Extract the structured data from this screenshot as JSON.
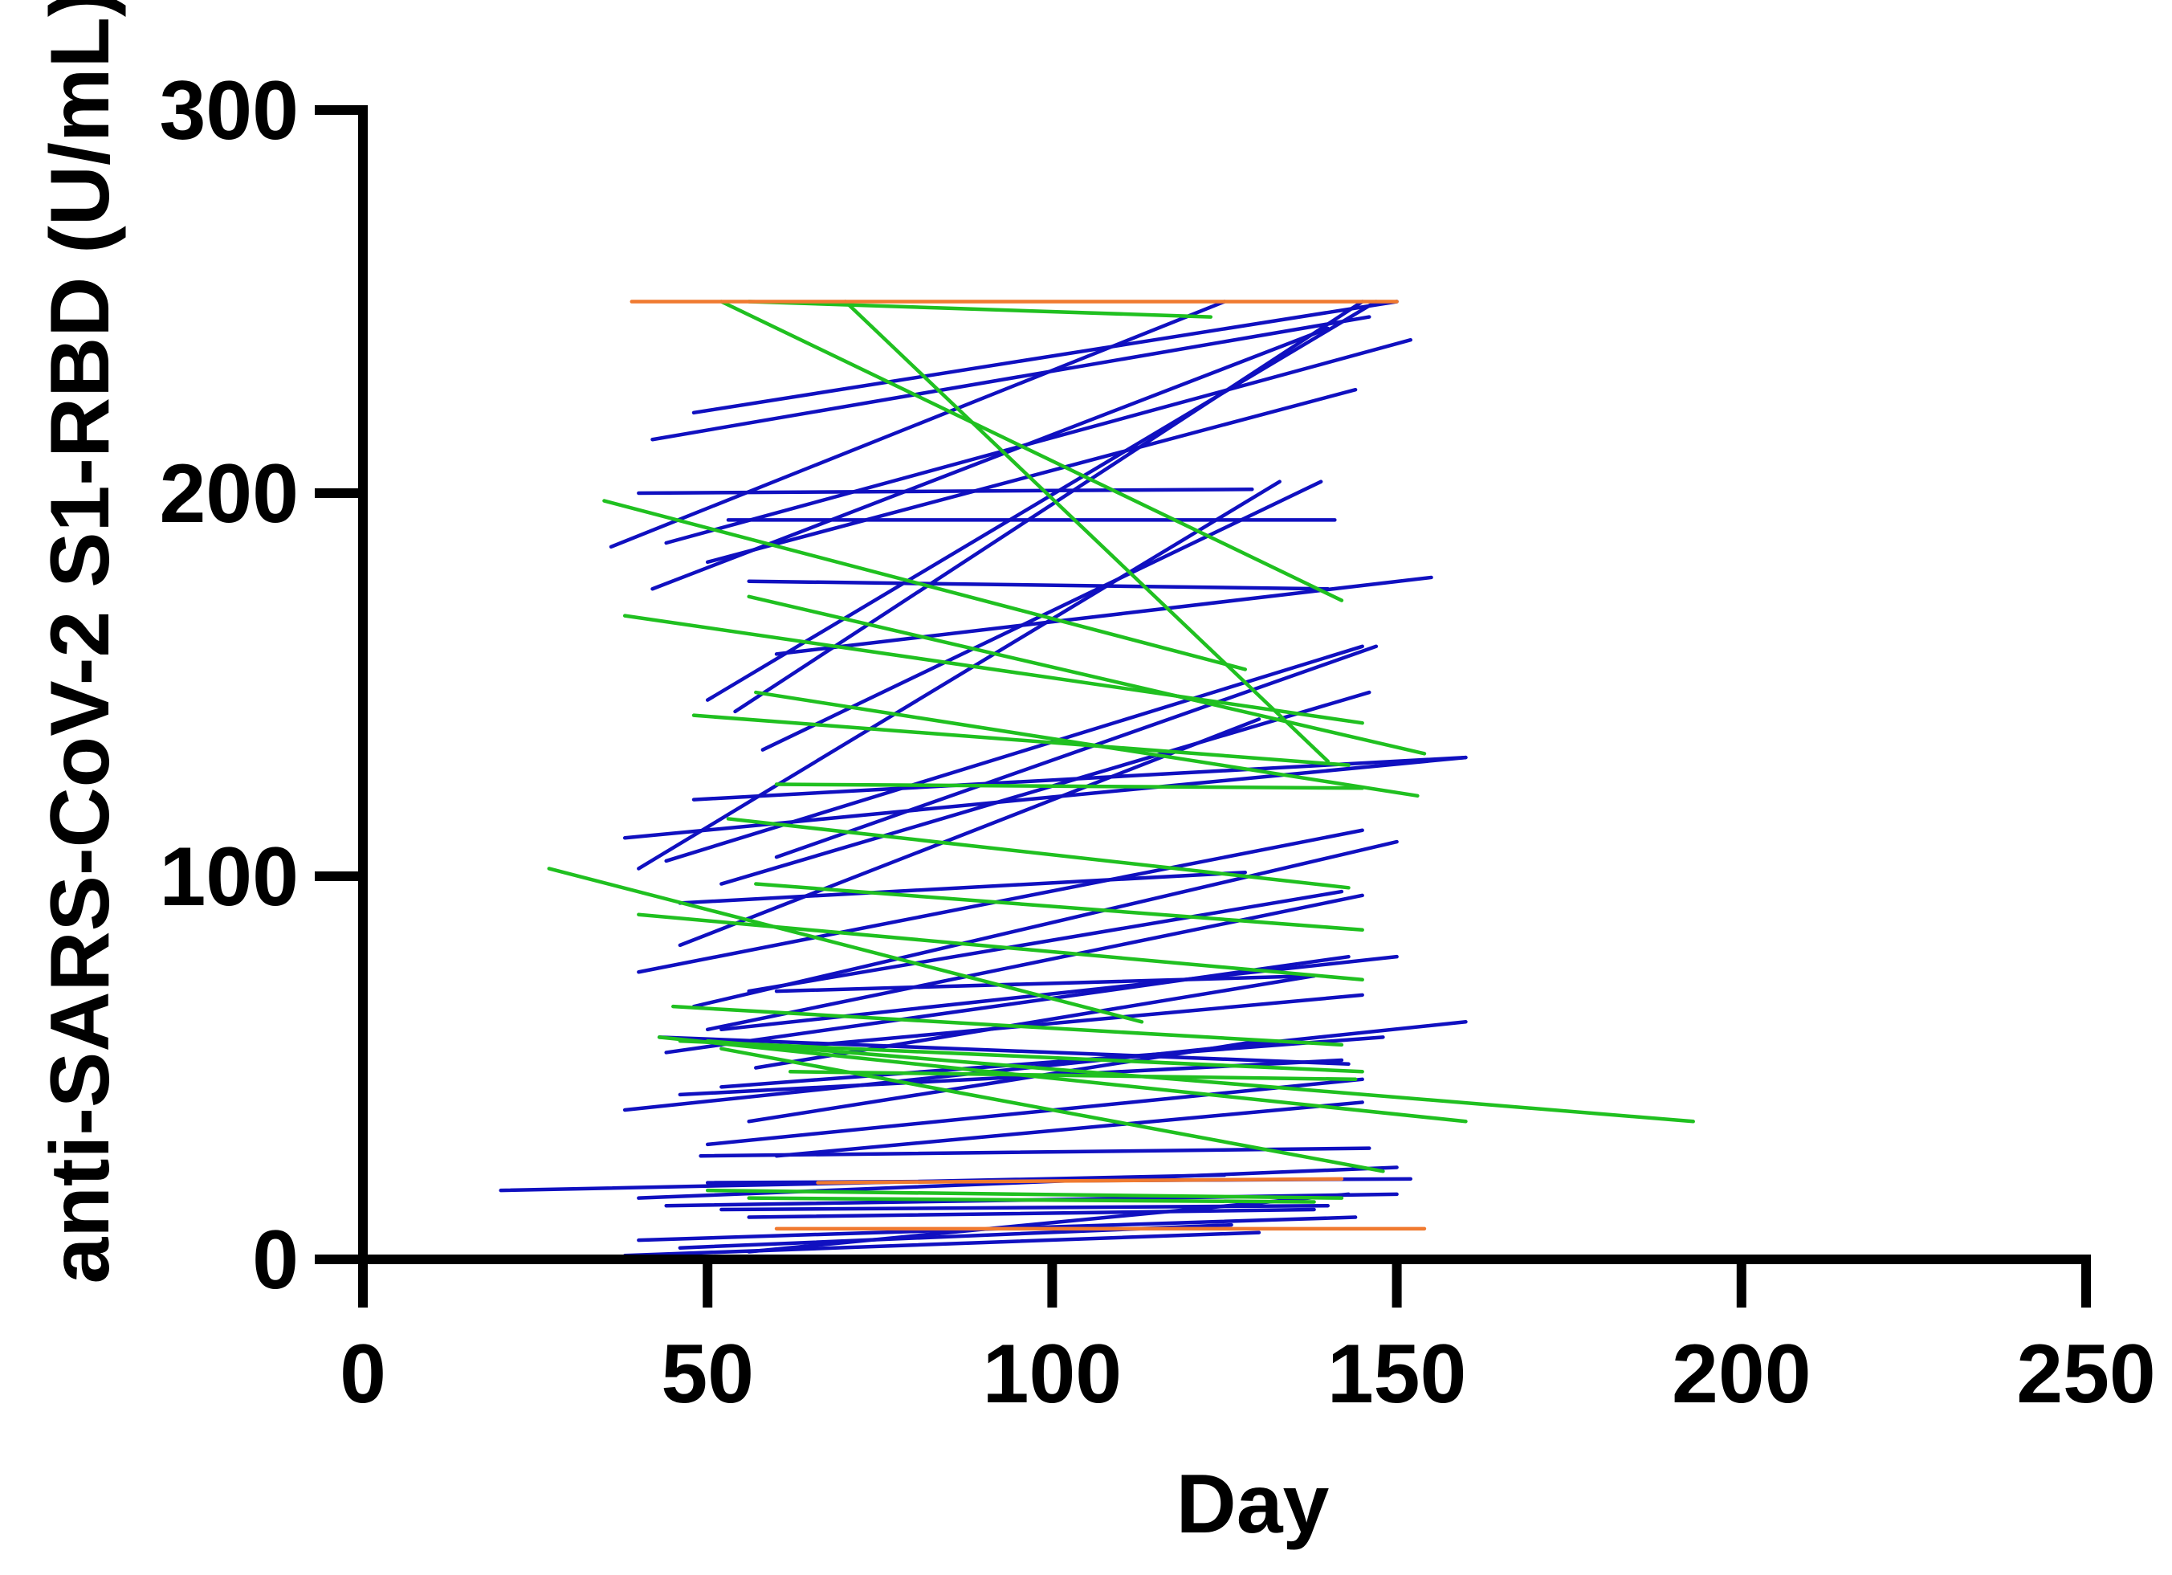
{
  "chart_data": {
    "type": "line",
    "title": "",
    "xlabel": "Day",
    "ylabel": "anti-SARS-CoV-2 S1-RBD (U/mL)",
    "xlim": [
      0,
      250
    ],
    "ylim": [
      0,
      300
    ],
    "x_ticks": [
      {
        "value": 0,
        "label": "0"
      },
      {
        "value": 50,
        "label": "50"
      },
      {
        "value": 100,
        "label": "100"
      },
      {
        "value": 150,
        "label": "150"
      },
      {
        "value": 200,
        "label": "200"
      },
      {
        "value": 250,
        "label": "250"
      }
    ],
    "y_ticks": [
      {
        "value": 0,
        "label": "0"
      },
      {
        "value": 100,
        "label": "100"
      },
      {
        "value": 200,
        "label": "200"
      },
      {
        "value": 300,
        "label": "300"
      }
    ],
    "grid": false,
    "legend": "none",
    "colors": {
      "blue": "#1010c0",
      "green": "#20c020",
      "orange": "#f07a30"
    },
    "series": [
      {
        "color": "blue",
        "segments": [
          [
            [
              36,
              186
            ],
            [
              125,
              250
            ]
          ],
          [
            [
              48,
              221
            ],
            [
              150,
              250
            ]
          ],
          [
            [
              42,
              214
            ],
            [
              146,
              246
            ]
          ],
          [
            [
              40,
              200
            ],
            [
              129,
              201
            ]
          ],
          [
            [
              42,
              175
            ],
            [
              140,
              243
            ]
          ],
          [
            [
              44,
              187
            ],
            [
              152,
              240
            ]
          ],
          [
            [
              50,
              182
            ],
            [
              144,
              227
            ]
          ],
          [
            [
              53,
              193
            ],
            [
              141,
              193
            ]
          ],
          [
            [
              56,
              177
            ],
            [
              140,
              175
            ]
          ],
          [
            [
              50,
              146
            ],
            [
              147,
              250
            ]
          ],
          [
            [
              60,
              158
            ],
            [
              155,
              178
            ]
          ],
          [
            [
              54,
              143
            ],
            [
              145,
              250
            ]
          ],
          [
            [
              58,
              133
            ],
            [
              139,
              203
            ]
          ],
          [
            [
              40,
              102
            ],
            [
              133,
              203
            ]
          ],
          [
            [
              48,
              120
            ],
            [
              160,
              131
            ]
          ],
          [
            [
              44,
              104
            ],
            [
              145,
              160
            ]
          ],
          [
            [
              52,
              98
            ],
            [
              146,
              148
            ]
          ],
          [
            [
              38,
              110
            ],
            [
              160,
              131
            ]
          ],
          [
            [
              60,
              105
            ],
            [
              147,
              160
            ]
          ],
          [
            [
              46,
              82
            ],
            [
              130,
              141
            ]
          ],
          [
            [
              40,
              75
            ],
            [
              145,
              112
            ]
          ],
          [
            [
              48,
              66
            ],
            [
              150,
              109
            ]
          ],
          [
            [
              56,
              70
            ],
            [
              142,
              96
            ]
          ],
          [
            [
              50,
              60
            ],
            [
              145,
              95
            ]
          ],
          [
            [
              44,
              54
            ],
            [
              143,
              79
            ]
          ],
          [
            [
              60,
              55
            ],
            [
              145,
              69
            ]
          ],
          [
            [
              52,
              45
            ],
            [
              148,
              58
            ]
          ],
          [
            [
              46,
              43
            ],
            [
              142,
              52
            ]
          ],
          [
            [
              38,
              39
            ],
            [
              160,
              62
            ]
          ],
          [
            [
              56,
              36
            ],
            [
              130,
              57
            ]
          ],
          [
            [
              50,
              30
            ],
            [
              145,
              47
            ]
          ],
          [
            [
              60,
              27
            ],
            [
              145,
              41
            ]
          ],
          [
            [
              40,
              16
            ],
            [
              150,
              24
            ]
          ],
          [
            [
              50,
              20
            ],
            [
              152,
              21
            ]
          ],
          [
            [
              20,
              18
            ],
            [
              125,
              22
            ]
          ],
          [
            [
              44,
              14
            ],
            [
              150,
              17
            ]
          ],
          [
            [
              52,
              13
            ],
            [
              140,
              14
            ]
          ],
          [
            [
              56,
              11
            ],
            [
              138,
              13
            ]
          ],
          [
            [
              40,
              5
            ],
            [
              144,
              11
            ]
          ],
          [
            [
              46,
              3
            ],
            [
              126,
              9
            ]
          ],
          [
            [
              38,
              1
            ],
            [
              130,
              7
            ]
          ],
          [
            [
              56,
              2
            ],
            [
              143,
              17
            ]
          ],
          [
            [
              52,
              60
            ],
            [
              150,
              79
            ]
          ],
          [
            [
              57,
              50
            ],
            [
              138,
              74
            ]
          ],
          [
            [
              46,
              93
            ],
            [
              128,
              101
            ]
          ],
          [
            [
              43,
              58
            ],
            [
              143,
              51
            ]
          ],
          [
            [
              60,
              70
            ],
            [
              138,
              74
            ]
          ],
          [
            [
              49,
              27
            ],
            [
              146,
              29
            ]
          ]
        ]
      },
      {
        "color": "green",
        "segments": [
          [
            [
              56,
              250
            ],
            [
              123,
              246
            ]
          ],
          [
            [
              70,
              250
            ],
            [
              140,
              130
            ]
          ],
          [
            [
              52,
              250
            ],
            [
              142,
              172
            ]
          ],
          [
            [
              35,
              198
            ],
            [
              128,
              154
            ]
          ],
          [
            [
              38,
              168
            ],
            [
              145,
              140
            ]
          ],
          [
            [
              56,
              173
            ],
            [
              154,
              132
            ]
          ],
          [
            [
              57,
              148
            ],
            [
              153,
              121
            ]
          ],
          [
            [
              48,
              142
            ],
            [
              143,
              129
            ]
          ],
          [
            [
              60,
              124
            ],
            [
              145,
              123
            ]
          ],
          [
            [
              53,
              115
            ],
            [
              143,
              97
            ]
          ],
          [
            [
              27,
              102
            ],
            [
              113,
              62
            ]
          ],
          [
            [
              57,
              98
            ],
            [
              145,
              86
            ]
          ],
          [
            [
              40,
              90
            ],
            [
              145,
              73
            ]
          ],
          [
            [
              45,
              66
            ],
            [
              142,
              56
            ]
          ],
          [
            [
              43,
              58
            ],
            [
              160,
              36
            ]
          ],
          [
            [
              50,
              57
            ],
            [
              193,
              36
            ]
          ],
          [
            [
              46,
              57
            ],
            [
              145,
              49
            ]
          ],
          [
            [
              52,
              55
            ],
            [
              148,
              23
            ]
          ],
          [
            [
              62,
              49
            ],
            [
              144,
              47
            ]
          ],
          [
            [
              50,
              18
            ],
            [
              142,
              16
            ]
          ],
          [
            [
              56,
              16
            ],
            [
              138,
              15
            ]
          ]
        ]
      },
      {
        "color": "orange",
        "segments": [
          [
            [
              39,
              250
            ],
            [
              150,
              250
            ]
          ],
          [
            [
              60,
              8
            ],
            [
              154,
              8
            ]
          ],
          [
            [
              52,
              0
            ],
            [
              150,
              0
            ]
          ],
          [
            [
              66,
              20
            ],
            [
              142,
              21
            ]
          ]
        ]
      }
    ]
  }
}
